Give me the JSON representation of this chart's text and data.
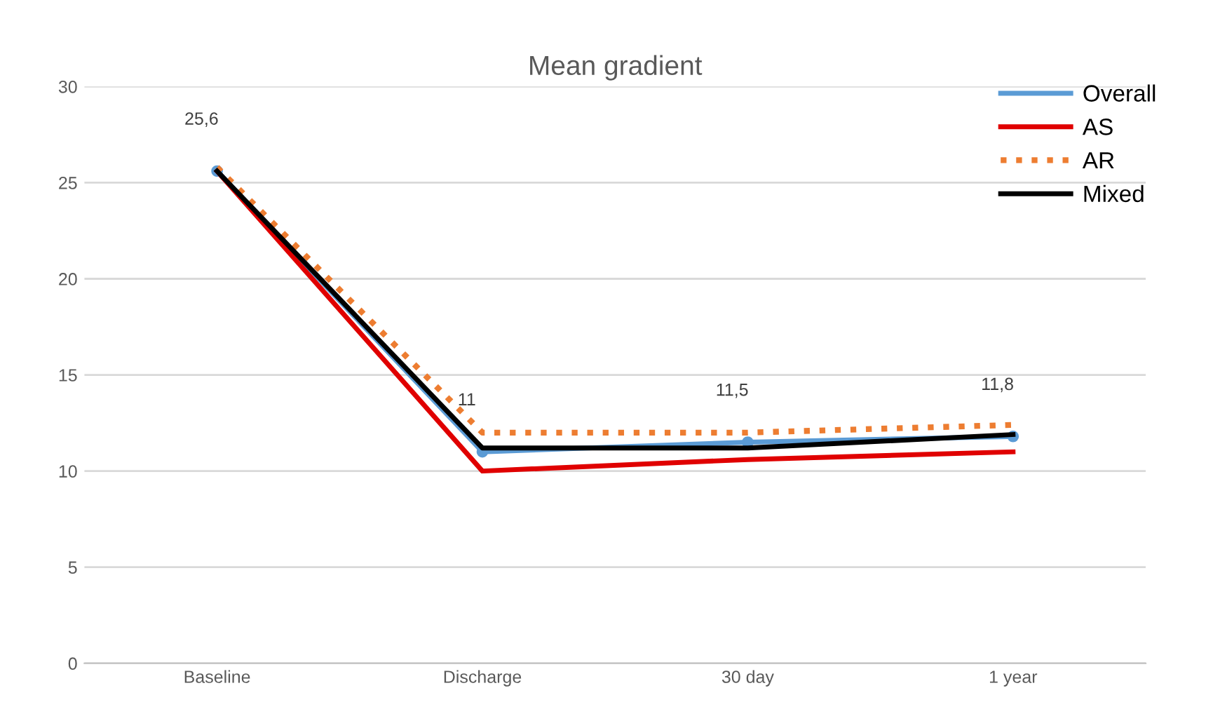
{
  "chart_data": {
    "type": "line",
    "title": "Mean gradient",
    "categories": [
      "Baseline",
      "Discharge",
      "30 day",
      "1 year"
    ],
    "series": [
      {
        "name": "Overall",
        "color": "#5b9bd5",
        "values": [
          25.6,
          11,
          11.5,
          11.8
        ],
        "value_labels": [
          "25,6",
          "11",
          "11,5",
          "11,8"
        ],
        "marker": "circle"
      },
      {
        "name": "AS",
        "color": "#e00000",
        "values": [
          25.6,
          10.0,
          10.6,
          11.0
        ]
      },
      {
        "name": "AR",
        "color": "#ed7d31",
        "values": [
          25.8,
          12.0,
          12.0,
          12.4
        ],
        "line_style": "dotted"
      },
      {
        "name": "Mixed",
        "color": "#000000",
        "values": [
          25.6,
          11.2,
          11.2,
          11.9
        ]
      }
    ],
    "ylim": [
      0,
      30
    ],
    "yticks": [
      0,
      5,
      10,
      15,
      20,
      25,
      30
    ],
    "grid": "y",
    "legend": "top right"
  }
}
